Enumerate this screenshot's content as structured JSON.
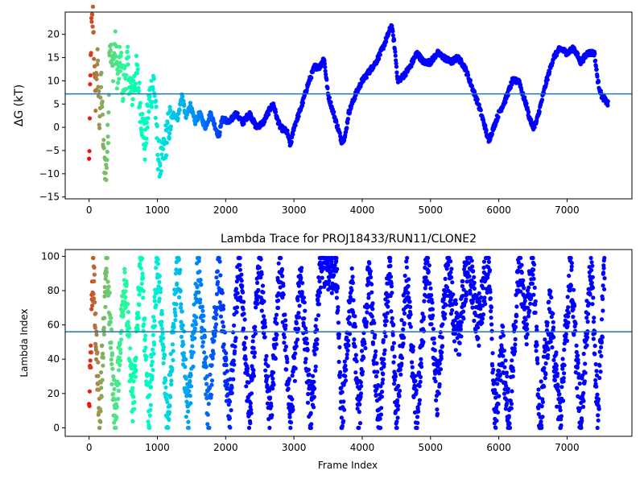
{
  "chart_data": [
    {
      "type": "scatter",
      "title": "",
      "xlabel": "",
      "ylabel": "ΔG (kT)",
      "xlim": [
        -350,
        7950
      ],
      "ylim": [
        -15.4,
        24.8
      ],
      "xticks": [
        0,
        1000,
        2000,
        3000,
        4000,
        5000,
        6000,
        7000
      ],
      "yticks": [
        -15,
        -10,
        -5,
        0,
        5,
        10,
        15,
        20
      ],
      "hline": 7.2,
      "hline_color": "#1f77b4",
      "colormap": "rainbow (red at frame 0 → violet at late frames)",
      "grid": false,
      "trace_keypoints": [
        [
          0,
          -8
        ],
        [
          30,
          20
        ],
        [
          60,
          24
        ],
        [
          90,
          5
        ],
        [
          120,
          15
        ],
        [
          150,
          2
        ],
        [
          180,
          10
        ],
        [
          210,
          -5
        ],
        [
          250,
          -10
        ],
        [
          280,
          0
        ],
        [
          300,
          20
        ],
        [
          340,
          12
        ],
        [
          380,
          18
        ],
        [
          420,
          10
        ],
        [
          460,
          15
        ],
        [
          500,
          8
        ],
        [
          560,
          14
        ],
        [
          620,
          7
        ],
        [
          700,
          12
        ],
        [
          760,
          3
        ],
        [
          820,
          -4
        ],
        [
          880,
          6
        ],
        [
          950,
          10
        ],
        [
          1010,
          -6
        ],
        [
          1060,
          -8
        ],
        [
          1120,
          -3
        ],
        [
          1180,
          1
        ],
        [
          1240,
          3
        ],
        [
          1300,
          2
        ],
        [
          1360,
          7
        ],
        [
          1420,
          2
        ],
        [
          1480,
          5
        ],
        [
          1550,
          1
        ],
        [
          1620,
          3
        ],
        [
          1700,
          0
        ],
        [
          1780,
          3
        ],
        [
          1850,
          0
        ],
        [
          1900,
          -2
        ],
        [
          1950,
          2
        ],
        [
          2050,
          1
        ],
        [
          2150,
          3
        ],
        [
          2250,
          1
        ],
        [
          2350,
          3
        ],
        [
          2450,
          0
        ],
        [
          2550,
          1
        ],
        [
          2650,
          4
        ],
        [
          2700,
          5
        ],
        [
          2750,
          2
        ],
        [
          2800,
          0
        ],
        [
          2900,
          -1
        ],
        [
          2950,
          -4
        ],
        [
          3000,
          0
        ],
        [
          3100,
          4
        ],
        [
          3200,
          9
        ],
        [
          3300,
          13
        ],
        [
          3380,
          13
        ],
        [
          3440,
          15
        ],
        [
          3500,
          7
        ],
        [
          3560,
          4
        ],
        [
          3620,
          1
        ],
        [
          3700,
          -3
        ],
        [
          3750,
          -2
        ],
        [
          3800,
          3
        ],
        [
          3900,
          7
        ],
        [
          4000,
          10
        ],
        [
          4100,
          12
        ],
        [
          4200,
          14
        ],
        [
          4300,
          17
        ],
        [
          4380,
          20
        ],
        [
          4430,
          22
        ],
        [
          4470,
          18
        ],
        [
          4520,
          10
        ],
        [
          4600,
          11
        ],
        [
          4700,
          13
        ],
        [
          4800,
          16
        ],
        [
          4900,
          14
        ],
        [
          5000,
          14
        ],
        [
          5100,
          16
        ],
        [
          5200,
          15
        ],
        [
          5300,
          14
        ],
        [
          5400,
          15
        ],
        [
          5500,
          13
        ],
        [
          5600,
          9
        ],
        [
          5700,
          5
        ],
        [
          5800,
          0
        ],
        [
          5850,
          -3
        ],
        [
          5900,
          -1
        ],
        [
          6000,
          3
        ],
        [
          6100,
          6
        ],
        [
          6200,
          10
        ],
        [
          6300,
          10
        ],
        [
          6350,
          7
        ],
        [
          6400,
          5
        ],
        [
          6450,
          2
        ],
        [
          6500,
          0
        ],
        [
          6550,
          1
        ],
        [
          6600,
          4
        ],
        [
          6700,
          10
        ],
        [
          6800,
          15
        ],
        [
          6900,
          17
        ],
        [
          7000,
          16
        ],
        [
          7100,
          17
        ],
        [
          7200,
          14
        ],
        [
          7300,
          16
        ],
        [
          7400,
          16
        ],
        [
          7450,
          10
        ],
        [
          7500,
          7
        ],
        [
          7550,
          6
        ],
        [
          7600,
          5
        ]
      ]
    },
    {
      "type": "scatter",
      "title": "Lambda Trace for PROJ18433/RUN11/CLONE2",
      "xlabel": "Frame Index",
      "ylabel": "Lambda Index",
      "xlim": [
        -350,
        7950
      ],
      "ylim": [
        -4.95,
        103.95
      ],
      "xticks": [
        0,
        1000,
        2000,
        3000,
        4000,
        5000,
        6000,
        7000
      ],
      "yticks": [
        0,
        20,
        40,
        60,
        80,
        100
      ],
      "hline": 56,
      "hline_color": "#1f77b4",
      "colormap": "rainbow (red at frame 0 → violet at late frames)",
      "grid": false,
      "trace_keypoints": [
        [
          0,
          10
        ],
        [
          60,
          95
        ],
        [
          150,
          5
        ],
        [
          260,
          98
        ],
        [
          380,
          3
        ],
        [
          520,
          90
        ],
        [
          640,
          10
        ],
        [
          760,
          99
        ],
        [
          880,
          5
        ],
        [
          1000,
          98
        ],
        [
          1150,
          4
        ],
        [
          1300,
          98
        ],
        [
          1450,
          5
        ],
        [
          1600,
          96
        ],
        [
          1750,
          6
        ],
        [
          1900,
          97
        ],
        [
          2050,
          4
        ],
        [
          2200,
          99
        ],
        [
          2350,
          5
        ],
        [
          2500,
          99
        ],
        [
          2650,
          4
        ],
        [
          2800,
          96
        ],
        [
          2950,
          3
        ],
        [
          3100,
          92
        ],
        [
          3250,
          2
        ],
        [
          3400,
          99
        ],
        [
          3520,
          90
        ],
        [
          3620,
          99
        ],
        [
          3700,
          3
        ],
        [
          3850,
          85
        ],
        [
          3950,
          5
        ],
        [
          4100,
          92
        ],
        [
          4250,
          3
        ],
        [
          4400,
          99
        ],
        [
          4500,
          5
        ],
        [
          4650,
          90
        ],
        [
          4800,
          3
        ],
        [
          4950,
          99
        ],
        [
          5100,
          20
        ],
        [
          5250,
          95
        ],
        [
          5400,
          50
        ],
        [
          5550,
          98
        ],
        [
          5700,
          60
        ],
        [
          5850,
          98
        ],
        [
          5950,
          2
        ],
        [
          6050,
          50
        ],
        [
          6150,
          3
        ],
        [
          6300,
          98
        ],
        [
          6400,
          60
        ],
        [
          6500,
          99
        ],
        [
          6600,
          3
        ],
        [
          6750,
          70
        ],
        [
          6900,
          5
        ],
        [
          7050,
          95
        ],
        [
          7200,
          3
        ],
        [
          7350,
          98
        ],
        [
          7450,
          5
        ],
        [
          7550,
          97
        ]
      ]
    }
  ]
}
